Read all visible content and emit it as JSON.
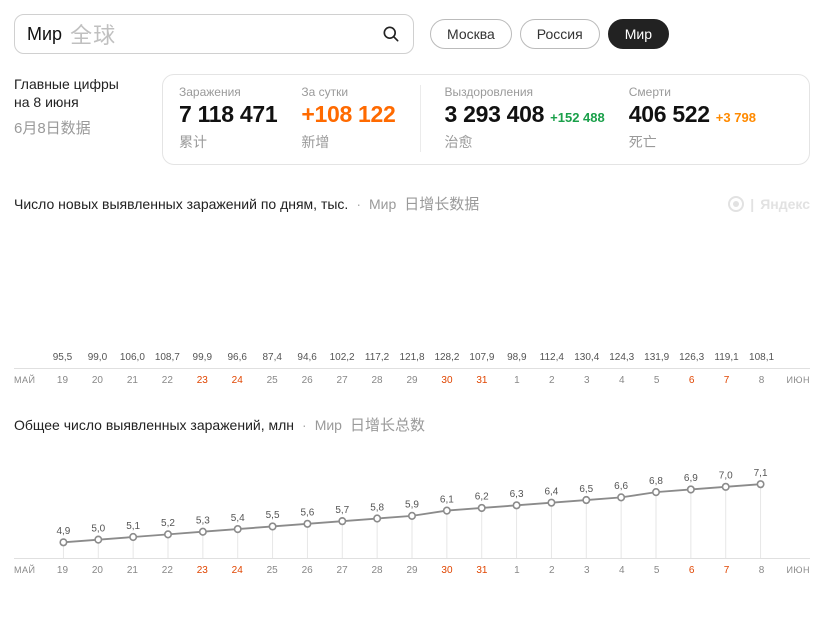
{
  "search": {
    "term_ru": "Мир",
    "term_cn": "全球"
  },
  "pills": [
    {
      "label": "Москва",
      "active": false
    },
    {
      "label": "Россия",
      "active": false
    },
    {
      "label": "Мир",
      "active": true
    }
  ],
  "stats_lead": {
    "ru_line1": "Главные цифры",
    "ru_line2": "на 8 июня",
    "cn": "6月8日数据"
  },
  "stats": {
    "infections": {
      "ru_label": "Заражения",
      "value": "7 118 471",
      "cn": "累计"
    },
    "daily": {
      "ru_label": "За сутки",
      "value": "+108 122",
      "cn": "新增"
    },
    "recovered": {
      "ru_label": "Выздоровления",
      "value": "3 293 408",
      "delta": "+152 488",
      "cn": "治愈"
    },
    "deaths": {
      "ru_label": "Смерти",
      "value": "406 522",
      "delta": "+3 798",
      "cn": "死亡"
    }
  },
  "watermark": "Яндекс",
  "chart1": {
    "title_ru": "Число новых выявленных заражений по дням, тыс.",
    "title_mir": "Мир",
    "title_cn": "日增长数据",
    "type": "bar",
    "ymax": 135,
    "axis_left": "МАЙ",
    "axis_right": "ИЮН",
    "bars": [
      {
        "x": "19",
        "value": 95.5,
        "label": "95,5",
        "color": "#f7b23c",
        "weekend": false
      },
      {
        "x": "20",
        "value": 99.0,
        "label": "99,0",
        "color": "#f7a938",
        "weekend": false
      },
      {
        "x": "21",
        "value": 106.0,
        "label": "106,0",
        "color": "#f59a33",
        "weekend": false
      },
      {
        "x": "22",
        "value": 108.7,
        "label": "108,7",
        "color": "#f2902f",
        "weekend": false
      },
      {
        "x": "23",
        "value": 99.9,
        "label": "99,9",
        "color": "#f7a938",
        "weekend": true
      },
      {
        "x": "24",
        "value": 96.6,
        "label": "96,6",
        "color": "#f8b63f",
        "weekend": true
      },
      {
        "x": "25",
        "value": 87.4,
        "label": "87,4",
        "color": "#fde07a",
        "weekend": false
      },
      {
        "x": "26",
        "value": 94.6,
        "label": "94,6",
        "color": "#fac246",
        "weekend": false
      },
      {
        "x": "27",
        "value": 102.2,
        "label": "102,2",
        "color": "#f69f35",
        "weekend": false
      },
      {
        "x": "28",
        "value": 117.2,
        "label": "117,2",
        "color": "#ea6a29",
        "weekend": false
      },
      {
        "x": "29",
        "value": 121.8,
        "label": "121,8",
        "color": "#e25424",
        "weekend": false
      },
      {
        "x": "30",
        "value": 128.2,
        "label": "128,2",
        "color": "#d33322",
        "weekend": true
      },
      {
        "x": "31",
        "value": 107.9,
        "label": "107,9",
        "color": "#f2922f",
        "weekend": true
      },
      {
        "x": "1",
        "value": 98.9,
        "label": "98,9",
        "color": "#f7aa38",
        "weekend": false
      },
      {
        "x": "2",
        "value": 112.4,
        "label": "112,4",
        "color": "#ee7a2b",
        "weekend": false
      },
      {
        "x": "3",
        "value": 130.4,
        "label": "130,4",
        "color": "#c72621",
        "weekend": false
      },
      {
        "x": "4",
        "value": 124.3,
        "label": "124,3",
        "color": "#d83b22",
        "weekend": false
      },
      {
        "x": "5",
        "value": 131.9,
        "label": "131,9",
        "color": "#c11f20",
        "weekend": false
      },
      {
        "x": "6",
        "value": 126.3,
        "label": "126,3",
        "color": "#d33122",
        "weekend": true
      },
      {
        "x": "7",
        "value": 119.1,
        "label": "119,1",
        "color": "#e65e26",
        "weekend": true
      },
      {
        "x": "8",
        "value": 108.1,
        "label": "108,1",
        "color": "#f2902f",
        "weekend": false
      }
    ]
  },
  "chart2": {
    "title_ru": "Общее число выявленных заражений, млн",
    "title_mir": "Мир",
    "title_cn": "日增长总数",
    "type": "line",
    "ymin": 4.5,
    "ymax": 8.0,
    "axis_left": "МАЙ",
    "axis_right": "ИЮН",
    "line_color": "#8b8b8b",
    "point_fill": "#ffffff",
    "point_stroke": "#8b8b8b",
    "points": [
      {
        "x": "19",
        "value": 4.9,
        "label": "4,9",
        "weekend": false
      },
      {
        "x": "20",
        "value": 5.0,
        "label": "5,0",
        "weekend": false
      },
      {
        "x": "21",
        "value": 5.1,
        "label": "5,1",
        "weekend": false
      },
      {
        "x": "22",
        "value": 5.2,
        "label": "5,2",
        "weekend": false
      },
      {
        "x": "23",
        "value": 5.3,
        "label": "5,3",
        "weekend": true
      },
      {
        "x": "24",
        "value": 5.4,
        "label": "5,4",
        "weekend": true
      },
      {
        "x": "25",
        "value": 5.5,
        "label": "5,5",
        "weekend": false
      },
      {
        "x": "26",
        "value": 5.6,
        "label": "5,6",
        "weekend": false
      },
      {
        "x": "27",
        "value": 5.7,
        "label": "5,7",
        "weekend": false
      },
      {
        "x": "28",
        "value": 5.8,
        "label": "5,8",
        "weekend": false
      },
      {
        "x": "29",
        "value": 5.9,
        "label": "5,9",
        "weekend": false
      },
      {
        "x": "30",
        "value": 6.1,
        "label": "6,1",
        "weekend": true
      },
      {
        "x": "31",
        "value": 6.2,
        "label": "6,2",
        "weekend": true
      },
      {
        "x": "1",
        "value": 6.3,
        "label": "6,3",
        "weekend": false
      },
      {
        "x": "2",
        "value": 6.4,
        "label": "6,4",
        "weekend": false
      },
      {
        "x": "3",
        "value": 6.5,
        "label": "6,5",
        "weekend": false
      },
      {
        "x": "4",
        "value": 6.6,
        "label": "6,6",
        "weekend": false
      },
      {
        "x": "5",
        "value": 6.8,
        "label": "6,8",
        "weekend": false
      },
      {
        "x": "6",
        "value": 6.9,
        "label": "6,9",
        "weekend": true
      },
      {
        "x": "7",
        "value": 7.0,
        "label": "7,0",
        "weekend": true
      },
      {
        "x": "8",
        "value": 7.1,
        "label": "7,1",
        "weekend": false
      }
    ]
  }
}
